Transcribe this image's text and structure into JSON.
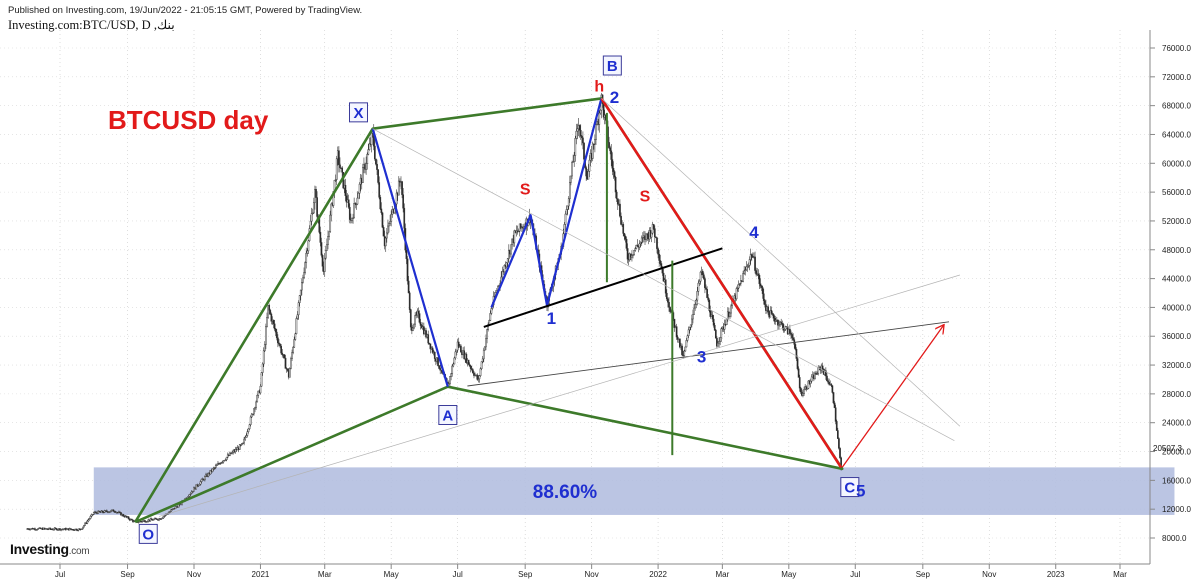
{
  "header": {
    "published": "Published on Investing.com, 19/Jun/2022 - 21:05:15 GMT, Powered by TradingView.",
    "symbol": "Investing.com:BTC/USD, D ,بنك"
  },
  "logo": {
    "text": "Investing",
    "suffix": ".com"
  },
  "colors": {
    "green": "#3d7a2a",
    "blue": "#1f2fd0",
    "red": "#e21a1a",
    "zone": "#b4bfe0",
    "candle_up": "#3a3a3a",
    "candle_down": "#222222"
  },
  "chart_data": {
    "type": "candlestick",
    "title": "BTCUSD day",
    "price_axis": {
      "ticks": [
        8000,
        12000,
        16000,
        20000,
        24000,
        28000,
        32000,
        36000,
        40000,
        44000,
        48000,
        52000,
        56000,
        60000,
        64000,
        68000,
        72000,
        76000
      ],
      "labels": [
        "8000.0",
        "12000.0",
        "16000.0",
        "20000.0",
        "24000.0",
        "28000.0",
        "32000.0",
        "36000.0",
        "40000.0",
        "44000.0",
        "48000.0",
        "52000.0",
        "56000.0",
        "60000.0",
        "64000.0",
        "68000.0",
        "72000.0",
        "76000.0"
      ],
      "last_price": 20507.3,
      "last_price_label": "20507.3",
      "ylim": [
        5000,
        78000
      ]
    },
    "time_axis": {
      "labels": [
        "Jul",
        "Sep",
        "Nov",
        "2021",
        "Mar",
        "May",
        "Jul",
        "Sep",
        "Nov",
        "2022",
        "Mar",
        "May",
        "Jul",
        "Sep",
        "Nov",
        "2023",
        "Mar"
      ],
      "dates": [
        "2020-07-01",
        "2020-09-01",
        "2020-11-01",
        "2021-01-01",
        "2021-03-01",
        "2021-05-01",
        "2021-07-01",
        "2021-09-01",
        "2021-11-01",
        "2022-01-01",
        "2022-03-01",
        "2022-05-01",
        "2022-07-01",
        "2022-09-01",
        "2022-11-01",
        "2023-01-01",
        "2023-03-01"
      ]
    },
    "price_path": [
      [
        "2020-06-01",
        9300
      ],
      [
        "2020-07-20",
        9200
      ],
      [
        "2020-08-01",
        11500
      ],
      [
        "2020-08-20",
        11800
      ],
      [
        "2020-09-08",
        10200
      ],
      [
        "2020-10-01",
        10700
      ],
      [
        "2020-10-20",
        12800
      ],
      [
        "2020-11-05",
        15500
      ],
      [
        "2020-11-25",
        18500
      ],
      [
        "2020-12-16",
        21000
      ],
      [
        "2021-01-01",
        29000
      ],
      [
        "2021-01-08",
        40000
      ],
      [
        "2021-01-27",
        30500
      ],
      [
        "2021-02-20",
        56000
      ],
      [
        "2021-02-28",
        45000
      ],
      [
        "2021-03-13",
        61000
      ],
      [
        "2021-03-25",
        52000
      ],
      [
        "2021-04-14",
        64000
      ],
      [
        "2021-04-25",
        49000
      ],
      [
        "2021-05-10",
        58000
      ],
      [
        "2021-05-19",
        37000
      ],
      [
        "2021-05-25",
        39000
      ],
      [
        "2021-06-22",
        29000
      ],
      [
        "2021-07-01",
        35000
      ],
      [
        "2021-07-20",
        29800
      ],
      [
        "2021-08-01",
        40000
      ],
      [
        "2021-08-22",
        50000
      ],
      [
        "2021-09-06",
        52500
      ],
      [
        "2021-09-21",
        40500
      ],
      [
        "2021-10-04",
        48000
      ],
      [
        "2021-10-20",
        66000
      ],
      [
        "2021-10-28",
        58000
      ],
      [
        "2021-11-10",
        68900
      ],
      [
        "2021-11-26",
        54000
      ],
      [
        "2021-12-04",
        47000
      ],
      [
        "2021-12-28",
        51000
      ],
      [
        "2022-01-10",
        41000
      ],
      [
        "2022-01-24",
        33000
      ],
      [
        "2022-02-10",
        45000
      ],
      [
        "2022-02-24",
        35000
      ],
      [
        "2022-03-28",
        47500
      ],
      [
        "2022-04-11",
        39500
      ],
      [
        "2022-05-05",
        36000
      ],
      [
        "2022-05-12",
        28000
      ],
      [
        "2022-05-31",
        31800
      ],
      [
        "2022-06-10",
        28500
      ],
      [
        "2022-06-18",
        17600
      ],
      [
        "2022-06-19",
        20507
      ]
    ],
    "zone": {
      "label": "88.60%",
      "from_date": "2020-08-01",
      "to_date": "2023-04-20",
      "price_low": 11200,
      "price_high": 17800
    },
    "title_style": {
      "color": "#e21a1a"
    },
    "labels": [
      {
        "text": "O",
        "date": "2020-09-20",
        "price": 8500,
        "style": "box"
      },
      {
        "text": "X",
        "date": "2021-04-01",
        "price": 67000,
        "style": "box"
      },
      {
        "text": "A",
        "date": "2021-06-22",
        "price": 25000,
        "style": "box"
      },
      {
        "text": "B",
        "date": "2021-11-20",
        "price": 73500,
        "style": "box"
      },
      {
        "text": "h",
        "date": "2021-11-08",
        "price": 70800,
        "style": "red"
      },
      {
        "text": "2",
        "date": "2021-11-22",
        "price": 69200,
        "style": "blue"
      },
      {
        "text": "S",
        "date": "2021-09-01",
        "price": 56500,
        "style": "red"
      },
      {
        "text": "S",
        "date": "2021-12-20",
        "price": 55500,
        "style": "red"
      },
      {
        "text": "1",
        "date": "2021-09-25",
        "price": 38500,
        "style": "blue"
      },
      {
        "text": "3",
        "date": "2022-02-10",
        "price": 33200,
        "style": "blue"
      },
      {
        "text": "4",
        "date": "2022-03-30",
        "price": 50500,
        "style": "blue"
      },
      {
        "text": "C",
        "date": "2022-06-26",
        "price": 15000,
        "style": "box"
      },
      {
        "text": "5",
        "date": "2022-07-06",
        "price": 14600,
        "style": "blue"
      }
    ],
    "lines": [
      {
        "color": "green",
        "width": 2.6,
        "points": [
          [
            "2020-09-08",
            10200
          ],
          [
            "2021-04-14",
            64800
          ],
          [
            "2021-11-10",
            69000
          ],
          [
            "2022-06-19",
            17600
          ],
          [
            "2021-06-22",
            29000
          ],
          [
            "2020-09-08",
            10200
          ]
        ]
      },
      {
        "color": "blue",
        "width": 2.2,
        "points": [
          [
            "2021-04-14",
            64800
          ],
          [
            "2021-06-22",
            29000
          ]
        ]
      },
      {
        "color": "blue",
        "width": 2.2,
        "points": [
          [
            "2021-08-01",
            40000
          ],
          [
            "2021-09-06",
            52800
          ],
          [
            "2021-09-21",
            40300
          ],
          [
            "2021-11-10",
            69000
          ]
        ]
      },
      {
        "color": "red",
        "width": 2.6,
        "points": [
          [
            "2021-11-10",
            69000
          ],
          [
            "2022-06-18",
            17800
          ]
        ]
      },
      {
        "color": "red",
        "width": 1.3,
        "points": [
          [
            "2022-06-19",
            17800
          ],
          [
            "2022-09-20",
            37500
          ]
        ],
        "arrow": true
      },
      {
        "color": "black",
        "width": 2.0,
        "points": [
          [
            "2021-07-25",
            37300
          ],
          [
            "2022-03-01",
            48200
          ]
        ]
      },
      {
        "color": "dark",
        "width": 0.9,
        "points": [
          [
            "2021-07-10",
            29100
          ],
          [
            "2022-09-25",
            38000
          ]
        ]
      },
      {
        "color": "green",
        "width": 2.0,
        "points": [
          [
            "2021-11-15",
            43500
          ],
          [
            "2021-11-15",
            67000
          ]
        ]
      },
      {
        "color": "green",
        "width": 2.0,
        "points": [
          [
            "2022-01-14",
            19500
          ],
          [
            "2022-01-14",
            46500
          ]
        ]
      },
      {
        "color": "gray",
        "width": 0.7,
        "points": [
          [
            "2021-04-14",
            64800
          ],
          [
            "2022-09-30",
            21500
          ]
        ]
      },
      {
        "color": "gray",
        "width": 0.7,
        "points": [
          [
            "2021-11-10",
            69000
          ],
          [
            "2022-10-05",
            23500
          ]
        ]
      },
      {
        "color": "gray",
        "width": 0.7,
        "points": [
          [
            "2020-09-30",
            11000
          ],
          [
            "2022-10-05",
            44500
          ]
        ]
      }
    ]
  }
}
